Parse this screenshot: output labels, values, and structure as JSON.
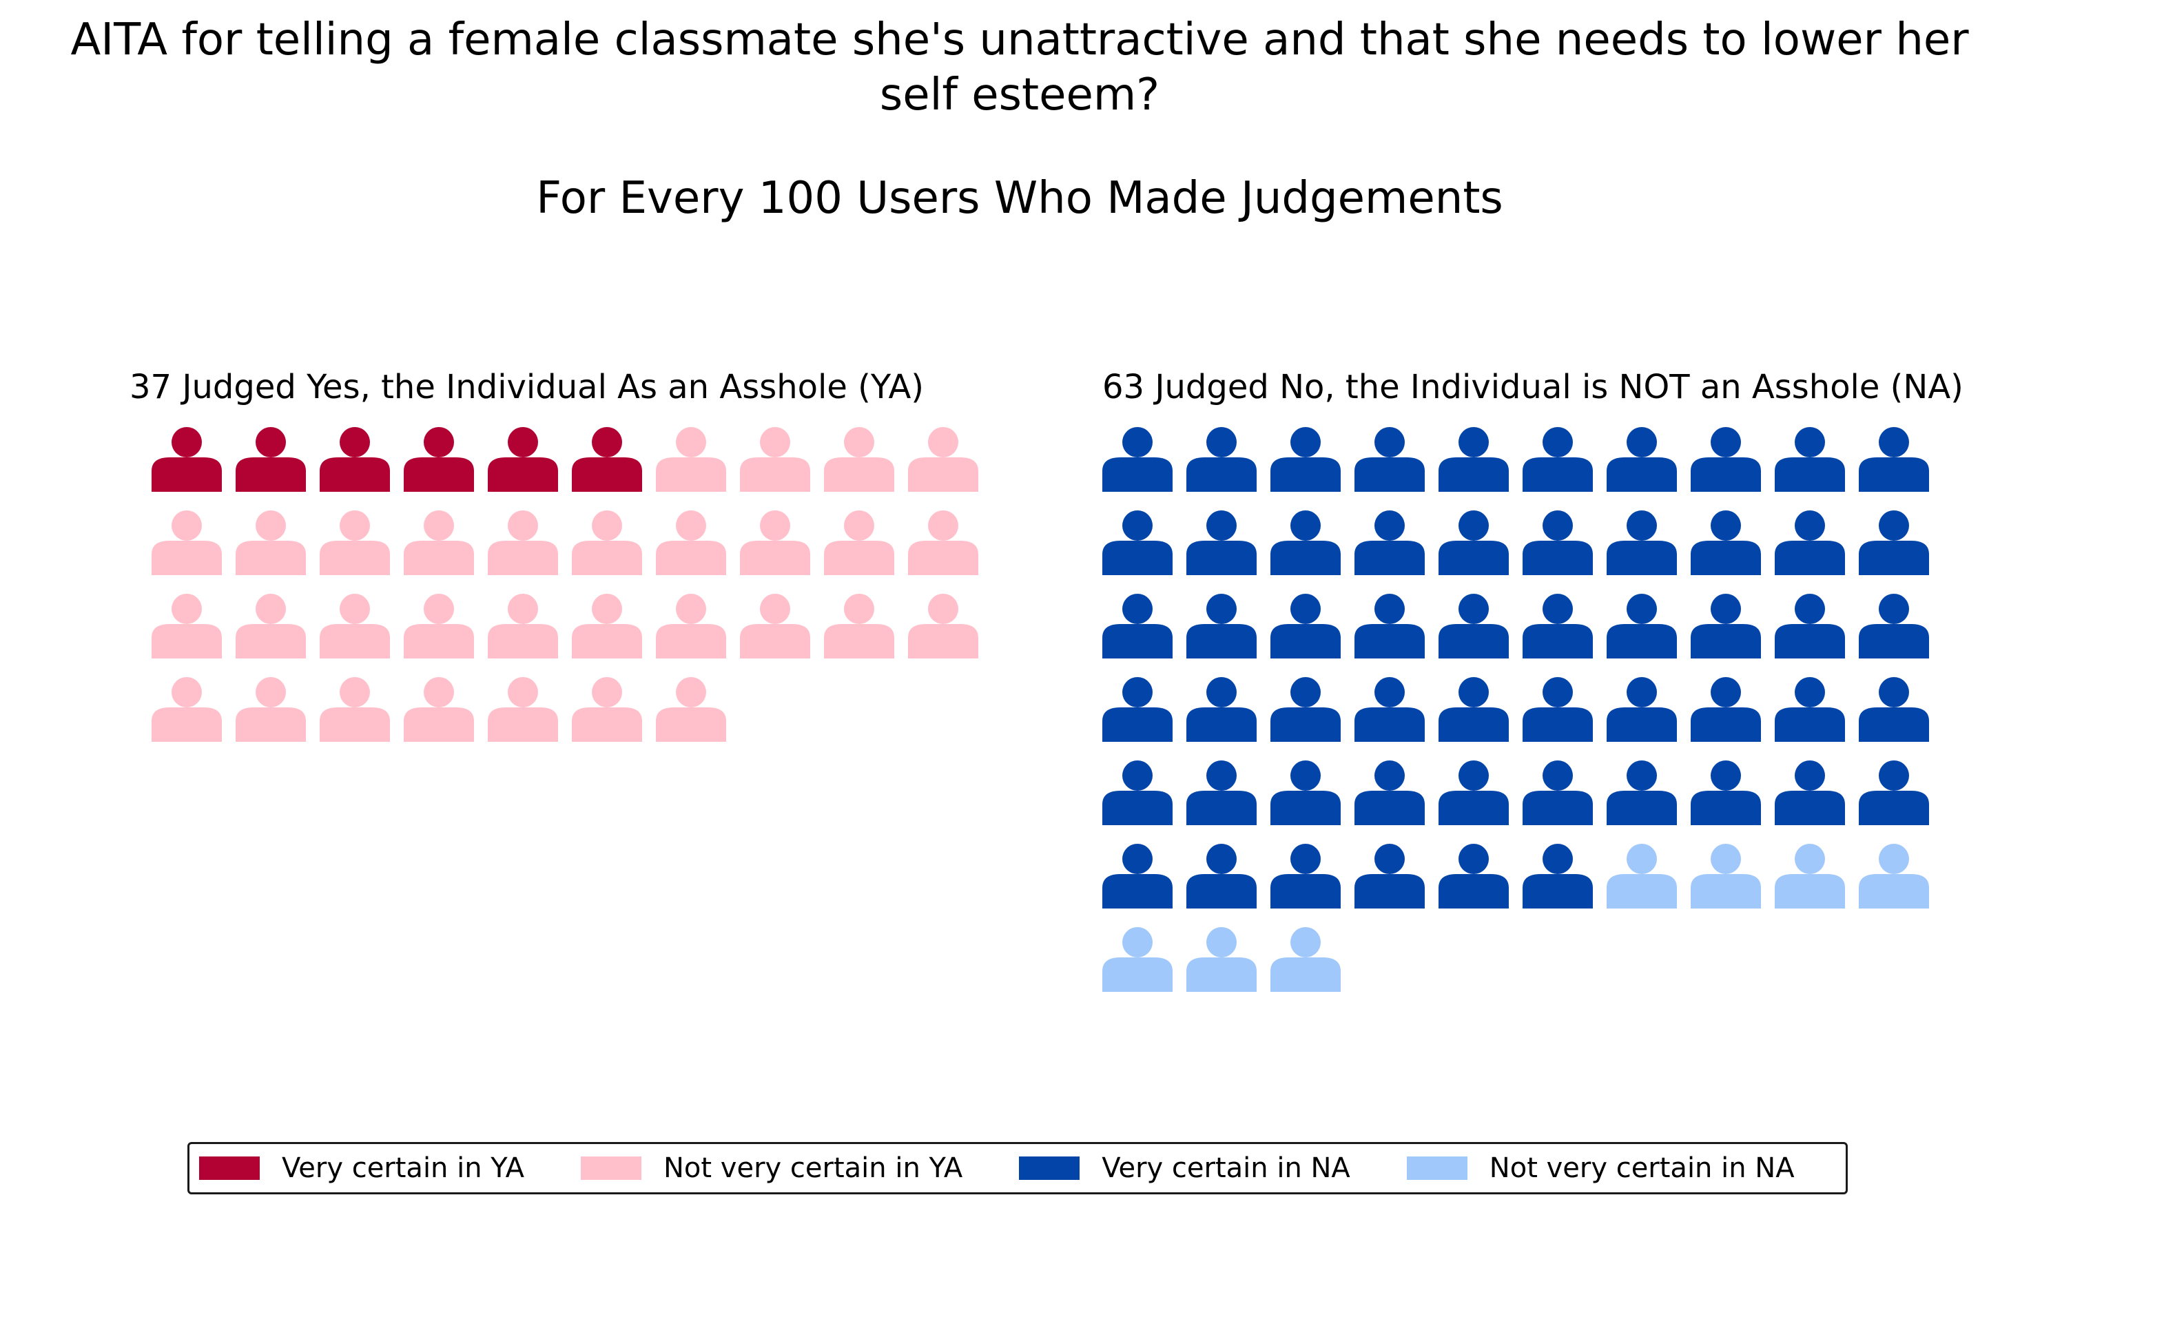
{
  "chart_data": {
    "type": "waffle",
    "title": "AITA for telling a female classmate she's unattractive and that she needs to lower her\nself esteem?",
    "subtitle": "For Every 100 Users Who Made Judgements",
    "panels": [
      {
        "key": "ya",
        "title": "37 Judged Yes, the Individual As an Asshole (YA)",
        "total": 37,
        "columns": 10,
        "segments": [
          {
            "name": "Very certain in YA",
            "count": 6,
            "color": "#b10233"
          },
          {
            "name": "Not very certain in YA",
            "count": 31,
            "color": "#ffc0cb"
          }
        ]
      },
      {
        "key": "na",
        "title": "63 Judged No, the Individual is NOT an Asshole (NA)",
        "total": 63,
        "columns": 10,
        "segments": [
          {
            "name": "Very certain in NA",
            "count": 56,
            "color": "#0344a9"
          },
          {
            "name": "Not very certain in NA",
            "count": 7,
            "color": "#a0c8fb"
          }
        ]
      }
    ],
    "legend": {
      "position": "bottom",
      "entries": [
        {
          "label": "Very certain in YA",
          "color": "#b10233"
        },
        {
          "label": "Not very certain in YA",
          "color": "#ffc0cb"
        },
        {
          "label": "Very certain in NA",
          "color": "#0344a9"
        },
        {
          "label": "Not very certain in NA",
          "color": "#a0c8fb"
        }
      ]
    }
  }
}
